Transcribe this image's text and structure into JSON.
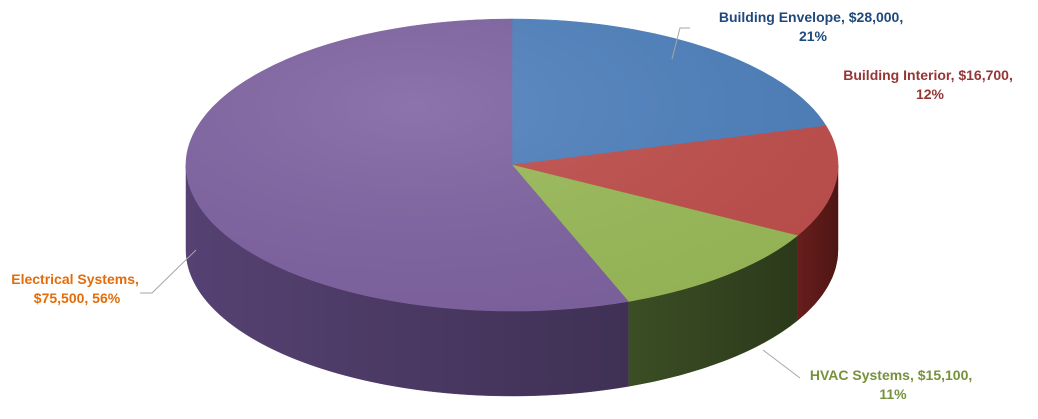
{
  "chart_data": {
    "type": "pie",
    "style": "3d",
    "slices": [
      {
        "category": "Building Envelope",
        "value": 28000,
        "value_label": "$28,000",
        "percent": 21,
        "percent_label": "21%",
        "color": "#4F81BD",
        "side_color": "#2F5597",
        "label_color": "#1F497D"
      },
      {
        "category": "Building Interior",
        "value": 16700,
        "value_label": "$16,700",
        "percent": 12,
        "percent_label": "12%",
        "color": "#C0504D",
        "side_color": "#6E1F1D",
        "label_color": "#943634"
      },
      {
        "category": "HVAC Systems",
        "value": 15100,
        "value_label": "$15,100",
        "percent": 11,
        "percent_label": "11%",
        "color": "#9BBB59",
        "side_color": "#3E5226",
        "label_color": "#76923C"
      },
      {
        "category": "Electrical Systems",
        "value": 75500,
        "value_label": "$75,500",
        "percent": 56,
        "percent_label": "56%",
        "color": "#8064A2",
        "side_color": "#5A4578",
        "label_color": "#E36C09"
      }
    ],
    "labels": [
      {
        "line1": "Building Envelope, $28,000,",
        "line2": "21%"
      },
      {
        "line1": "Building Interior, $16,700,",
        "line2": "12%"
      },
      {
        "line1": "HVAC Systems, $15,100,",
        "line2": "11%"
      },
      {
        "line1": "Electrical Systems,",
        "line2": "$75,500, 56%"
      }
    ],
    "title": "",
    "legend": "none"
  }
}
